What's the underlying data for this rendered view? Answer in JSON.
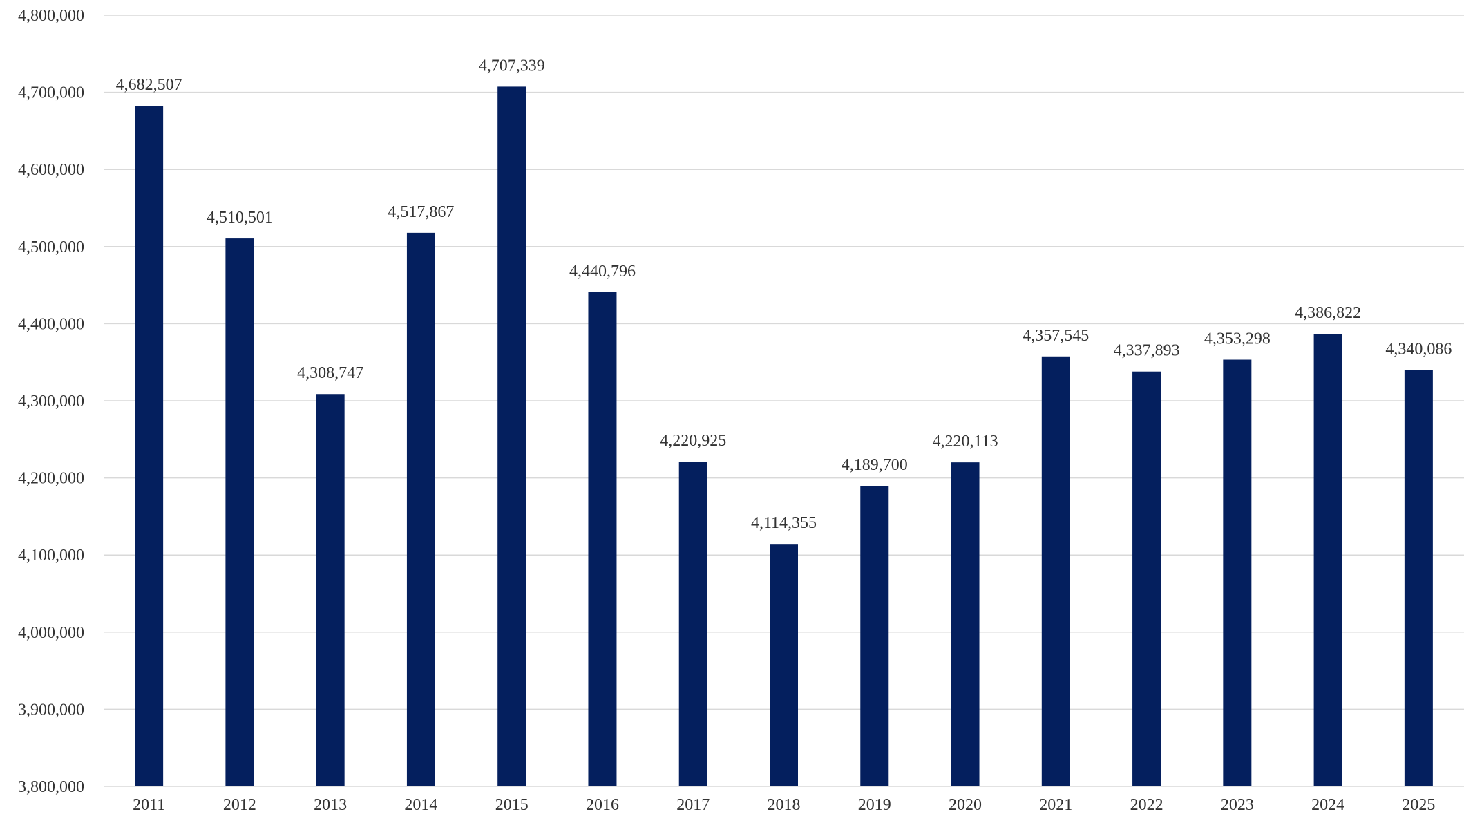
{
  "chart_data": {
    "type": "bar",
    "title": "",
    "xlabel": "",
    "ylabel": "",
    "categories": [
      "2011",
      "2012",
      "2013",
      "2014",
      "2015",
      "2016",
      "2017",
      "2018",
      "2019",
      "2020",
      "2021",
      "2022",
      "2023",
      "2024",
      "2025"
    ],
    "values": [
      4682507,
      4510501,
      4308747,
      4517867,
      4707339,
      4440796,
      4220925,
      4114355,
      4189700,
      4220113,
      4357545,
      4337893,
      4353298,
      4386822,
      4340086
    ],
    "value_labels": [
      "4,682,507",
      "4,510,501",
      "4,308,747",
      "4,517,867",
      "4,707,339",
      "4,440,796",
      "4,220,925",
      "4,114,355",
      "4,189,700",
      "4,220,113",
      "4,357,545",
      "4,337,893",
      "4,353,298",
      "4,386,822",
      "4,340,086"
    ],
    "ylim": [
      3800000,
      4800000
    ],
    "yticks": [
      3800000,
      3900000,
      4000000,
      4100000,
      4200000,
      4300000,
      4400000,
      4500000,
      4600000,
      4700000,
      4800000
    ],
    "ytick_labels": [
      "3,800,000",
      "3,900,000",
      "4,000,000",
      "4,100,000",
      "4,200,000",
      "4,300,000",
      "4,400,000",
      "4,500,000",
      "4,600,000",
      "4,700,000",
      "4,800,000"
    ],
    "grid": true,
    "legend": "none",
    "colors": {
      "bar": "#041F5E",
      "grid": "#D9D9D9",
      "text": "#333333"
    }
  }
}
